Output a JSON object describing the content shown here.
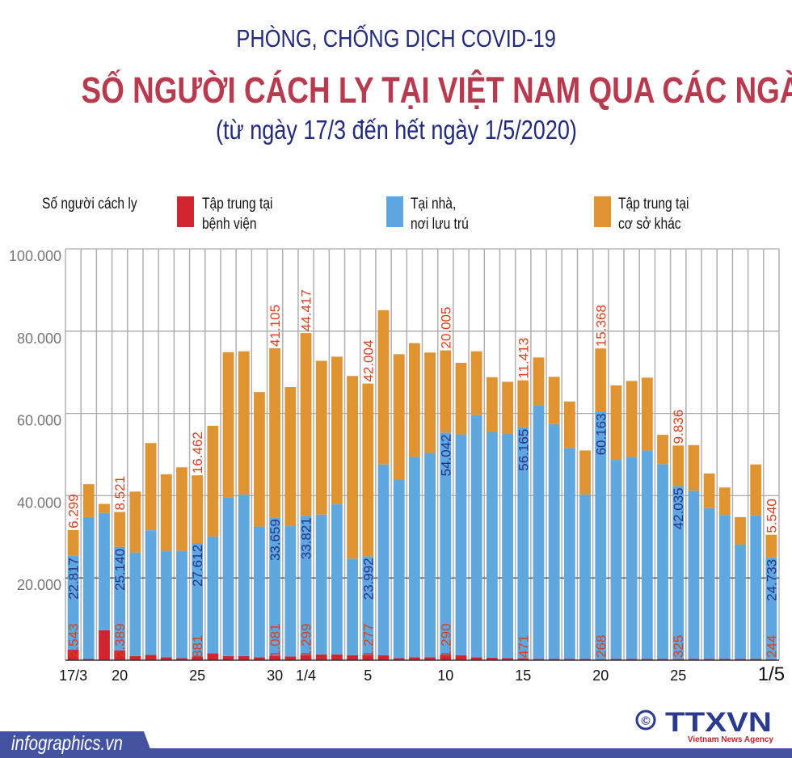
{
  "header": {
    "supertitle": "PHÒNG, CHỐNG DỊCH COVID-19",
    "title": "SỐ NGƯỜI CÁCH LY TẠI VIỆT NAM QUA CÁC NGÀY",
    "subtitle": "(từ ngày 17/3 đến hết ngày 1/5/2020)"
  },
  "legend": {
    "heading": "Số người cách ly",
    "items": [
      {
        "line1": "Tập trung tại",
        "line2": "bệnh viện",
        "color": "#d0242e"
      },
      {
        "line1": "Tại nhà,",
        "line2": "nơi lưu trú",
        "color": "#5fa8df"
      },
      {
        "line1": "Tập trung tại",
        "line2": "cơ sở khác",
        "color": "#e09431"
      }
    ]
  },
  "footer": {
    "site": "infographics.vn",
    "copyright_symbol": "©",
    "logo_text": "TTXVN",
    "logo_subtext": "Vietnam News Agency"
  },
  "chart_data": {
    "type": "bar",
    "stacked": true,
    "title": "SỐ NGƯỜI CÁCH LY TẠI VIỆT NAM QUA CÁC NGÀY",
    "ylim": [
      0,
      100000
    ],
    "yticks": [
      "100.000",
      "80.000",
      "60.000",
      "40.000",
      "20.000"
    ],
    "ytick_values": [
      100000,
      80000,
      60000,
      40000,
      20000
    ],
    "grid": true,
    "legend_position": "top",
    "categories": [
      "17/3",
      "18/3",
      "19/3",
      "20/3",
      "21/3",
      "22/3",
      "23/3",
      "24/3",
      "25/3",
      "26/3",
      "27/3",
      "28/3",
      "29/3",
      "30/3",
      "31/3",
      "1/4",
      "2/4",
      "3/4",
      "4/4",
      "5/4",
      "6/4",
      "7/4",
      "8/4",
      "9/4",
      "10/4",
      "11/4",
      "12/4",
      "13/4",
      "14/4",
      "15/4",
      "16/4",
      "17/4",
      "18/4",
      "19/4",
      "20/4",
      "21/4",
      "22/4",
      "23/4",
      "24/4",
      "25/4",
      "26/4",
      "27/4",
      "28/4",
      "29/4",
      "30/4",
      "1/5"
    ],
    "xtick_labels": [
      {
        "index": 0,
        "text": "17/3"
      },
      {
        "index": 3,
        "text": "20"
      },
      {
        "index": 8,
        "text": "25"
      },
      {
        "index": 13,
        "text": "30"
      },
      {
        "index": 15,
        "text": "1/4"
      },
      {
        "index": 19,
        "text": "5"
      },
      {
        "index": 24,
        "text": "10"
      },
      {
        "index": 29,
        "text": "15"
      },
      {
        "index": 34,
        "text": "20"
      },
      {
        "index": 39,
        "text": "25"
      },
      {
        "index": 45,
        "text": "1/5"
      }
    ],
    "series": [
      {
        "name": "Tập trung tại bệnh viện",
        "color": "#d0242e",
        "values": [
          2543,
          300,
          7300,
          2389,
          1000,
          1300,
          700,
          500,
          881,
          1700,
          1000,
          1000,
          700,
          1081,
          900,
          1299,
          1400,
          1400,
          1200,
          1277,
          1200,
          500,
          700,
          700,
          1290,
          1200,
          700,
          600,
          500,
          471,
          300,
          300,
          300,
          300,
          268,
          300,
          300,
          300,
          300,
          325,
          300,
          300,
          300,
          300,
          300,
          244
        ]
      },
      {
        "name": "Tại nhà, nơi lưu trú",
        "color": "#5fa8df",
        "values": [
          22817,
          34500,
          28500,
          25140,
          25200,
          30300,
          25900,
          26100,
          27612,
          28400,
          38500,
          39300,
          31800,
          33659,
          31700,
          33821,
          34000,
          36500,
          23500,
          23992,
          46400,
          43400,
          48700,
          49700,
          54042,
          53700,
          58900,
          54900,
          54600,
          56165,
          61700,
          57100,
          51300,
          40000,
          60163,
          48400,
          49100,
          50700,
          47400,
          42035,
          40900,
          36700,
          35000,
          27800,
          35000,
          24733
        ]
      },
      {
        "name": "Tập trung tại cơ sở khác",
        "color": "#e09431",
        "values": [
          6299,
          8000,
          2200,
          8521,
          14800,
          21200,
          18600,
          20300,
          16462,
          26900,
          35400,
          34800,
          32700,
          41105,
          33800,
          44417,
          37400,
          35900,
          44400,
          42004,
          37500,
          30500,
          27700,
          24400,
          20005,
          17400,
          15500,
          13300,
          12600,
          11413,
          11600,
          11500,
          11300,
          10700,
          15368,
          18100,
          18500,
          17700,
          7100,
          9836,
          11100,
          8400,
          6700,
          6700,
          12300,
          5540
        ]
      }
    ],
    "data_labels": [
      {
        "index": 0,
        "hospital": "2.543",
        "home": "22.817",
        "other": "6.299"
      },
      {
        "index": 3,
        "hospital": "2.389",
        "home": "25.140",
        "other": "8.521"
      },
      {
        "index": 8,
        "hospital": "881",
        "home": "27.612",
        "other": "16.462"
      },
      {
        "index": 13,
        "hospital": "1.081",
        "home": "33.659",
        "other": "41.105"
      },
      {
        "index": 15,
        "hospital": "1.299",
        "home": "33.821",
        "other": "44.417"
      },
      {
        "index": 19,
        "hospital": "1.277",
        "home": "23.992",
        "other": "42.004"
      },
      {
        "index": 24,
        "hospital": "1.290",
        "home": "54.042",
        "other": "20.005"
      },
      {
        "index": 29,
        "hospital": "471",
        "home": "56.165",
        "other": "11.413"
      },
      {
        "index": 34,
        "hospital": "268",
        "home": "60.163",
        "other": "15.368"
      },
      {
        "index": 39,
        "hospital": "325",
        "home": "42.035",
        "other": "9.836"
      },
      {
        "index": 45,
        "hospital": "244",
        "home": "24.733",
        "other": "5.540"
      }
    ],
    "label_colors": {
      "hospital": "#d8401f",
      "home": "#27318a",
      "other": "#d8401f"
    }
  }
}
